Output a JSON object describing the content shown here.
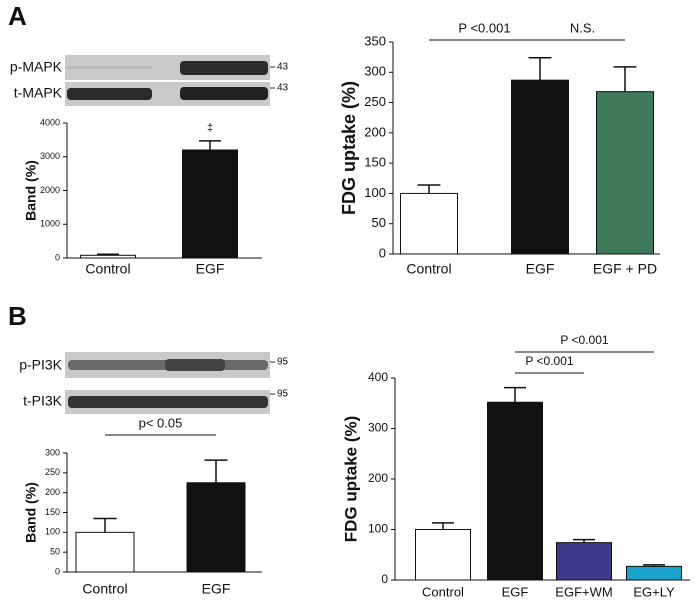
{
  "panels": [
    {
      "label": "A",
      "blots": [
        {
          "name": "p-MAPK",
          "size": "43"
        },
        {
          "name": "t-MAPK",
          "size": "43"
        }
      ]
    },
    {
      "label": "B",
      "blots": [
        {
          "name": "p-PI3K",
          "size": "95"
        },
        {
          "name": "t-PI3K",
          "size": "95"
        }
      ]
    }
  ],
  "chart_data": [
    {
      "type": "bar",
      "ylabel": "Band (%)",
      "categories": [
        "Control",
        "EGF"
      ],
      "values": [
        80,
        3200
      ],
      "errors": [
        30,
        270
      ],
      "colors": [
        "#ffffff",
        "#111111"
      ],
      "ylim": [
        0,
        4000
      ],
      "yticks": [
        0,
        1000,
        2000,
        3000,
        4000
      ],
      "annotations": [
        "‡"
      ]
    },
    {
      "type": "bar",
      "ylabel": "FDG uptake (%)",
      "categories": [
        "Control",
        "EGF",
        "EGF + PD"
      ],
      "values": [
        100,
        287,
        268
      ],
      "errors": [
        14,
        37,
        41
      ],
      "colors": [
        "#ffffff",
        "#111111",
        "#3f7a5a"
      ],
      "ylim": [
        0,
        350
      ],
      "yticks": [
        0,
        50,
        100,
        150,
        200,
        250,
        300,
        350
      ],
      "annotations": [
        "P <0.001",
        "N.S."
      ]
    },
    {
      "type": "bar",
      "ylabel": "Band (%)",
      "categories": [
        "Control",
        "EGF"
      ],
      "values": [
        100,
        225
      ],
      "errors": [
        35,
        57
      ],
      "colors": [
        "#ffffff",
        "#111111"
      ],
      "ylim": [
        0,
        300
      ],
      "yticks": [
        0,
        50,
        100,
        150,
        200,
        250,
        300
      ],
      "annotations": [
        "p< 0.05"
      ]
    },
    {
      "type": "bar",
      "ylabel": "FDG uptake (%)",
      "categories": [
        "Control",
        "EGF",
        "EGF+WM",
        "EG+LY"
      ],
      "values": [
        100,
        352,
        74,
        27
      ],
      "errors": [
        13,
        29,
        6,
        3
      ],
      "colors": [
        "#ffffff",
        "#111111",
        "#3d3a8c",
        "#1aa3c8"
      ],
      "ylim": [
        0,
        400
      ],
      "yticks": [
        0,
        100,
        200,
        300,
        400
      ],
      "annotations": [
        "P <0.001",
        "P <0.001"
      ]
    }
  ]
}
